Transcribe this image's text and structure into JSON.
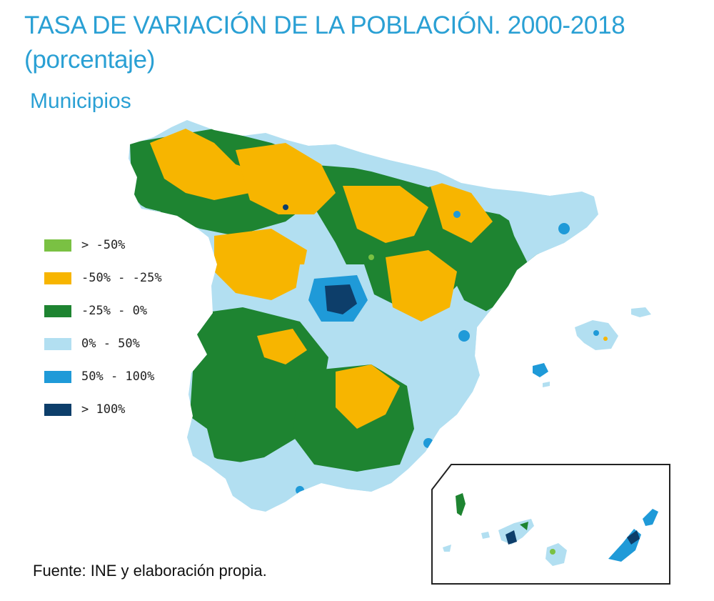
{
  "title": {
    "line1": "TASA DE VARIACIÓN DE LA POBLACIÓN. 2000-2018",
    "line2": "(porcentaje)"
  },
  "subtitle": "Municipios",
  "legend": {
    "items": [
      {
        "label": "> -50%",
        "color": "#7ac143"
      },
      {
        "label": "-50% - -25%",
        "color": "#f7b500"
      },
      {
        "label": "-25% - 0%",
        "color": "#1e8431"
      },
      {
        "label": "0% - 50%",
        "color": "#b2dff1"
      },
      {
        "label": "50% - 100%",
        "color": "#1f9ad8"
      },
      {
        "label": "> 100%",
        "color": "#0d3e6a"
      }
    ]
  },
  "source": "Fuente: INE y elaboración propia.",
  "colors": {
    "title": "#2aa0d4",
    "light_blue": "#b2dff1",
    "green": "#1e8431",
    "orange": "#f7b500",
    "mid_blue": "#1f9ad8",
    "dark_blue": "#0d3e6a",
    "light_green": "#7ac143"
  }
}
